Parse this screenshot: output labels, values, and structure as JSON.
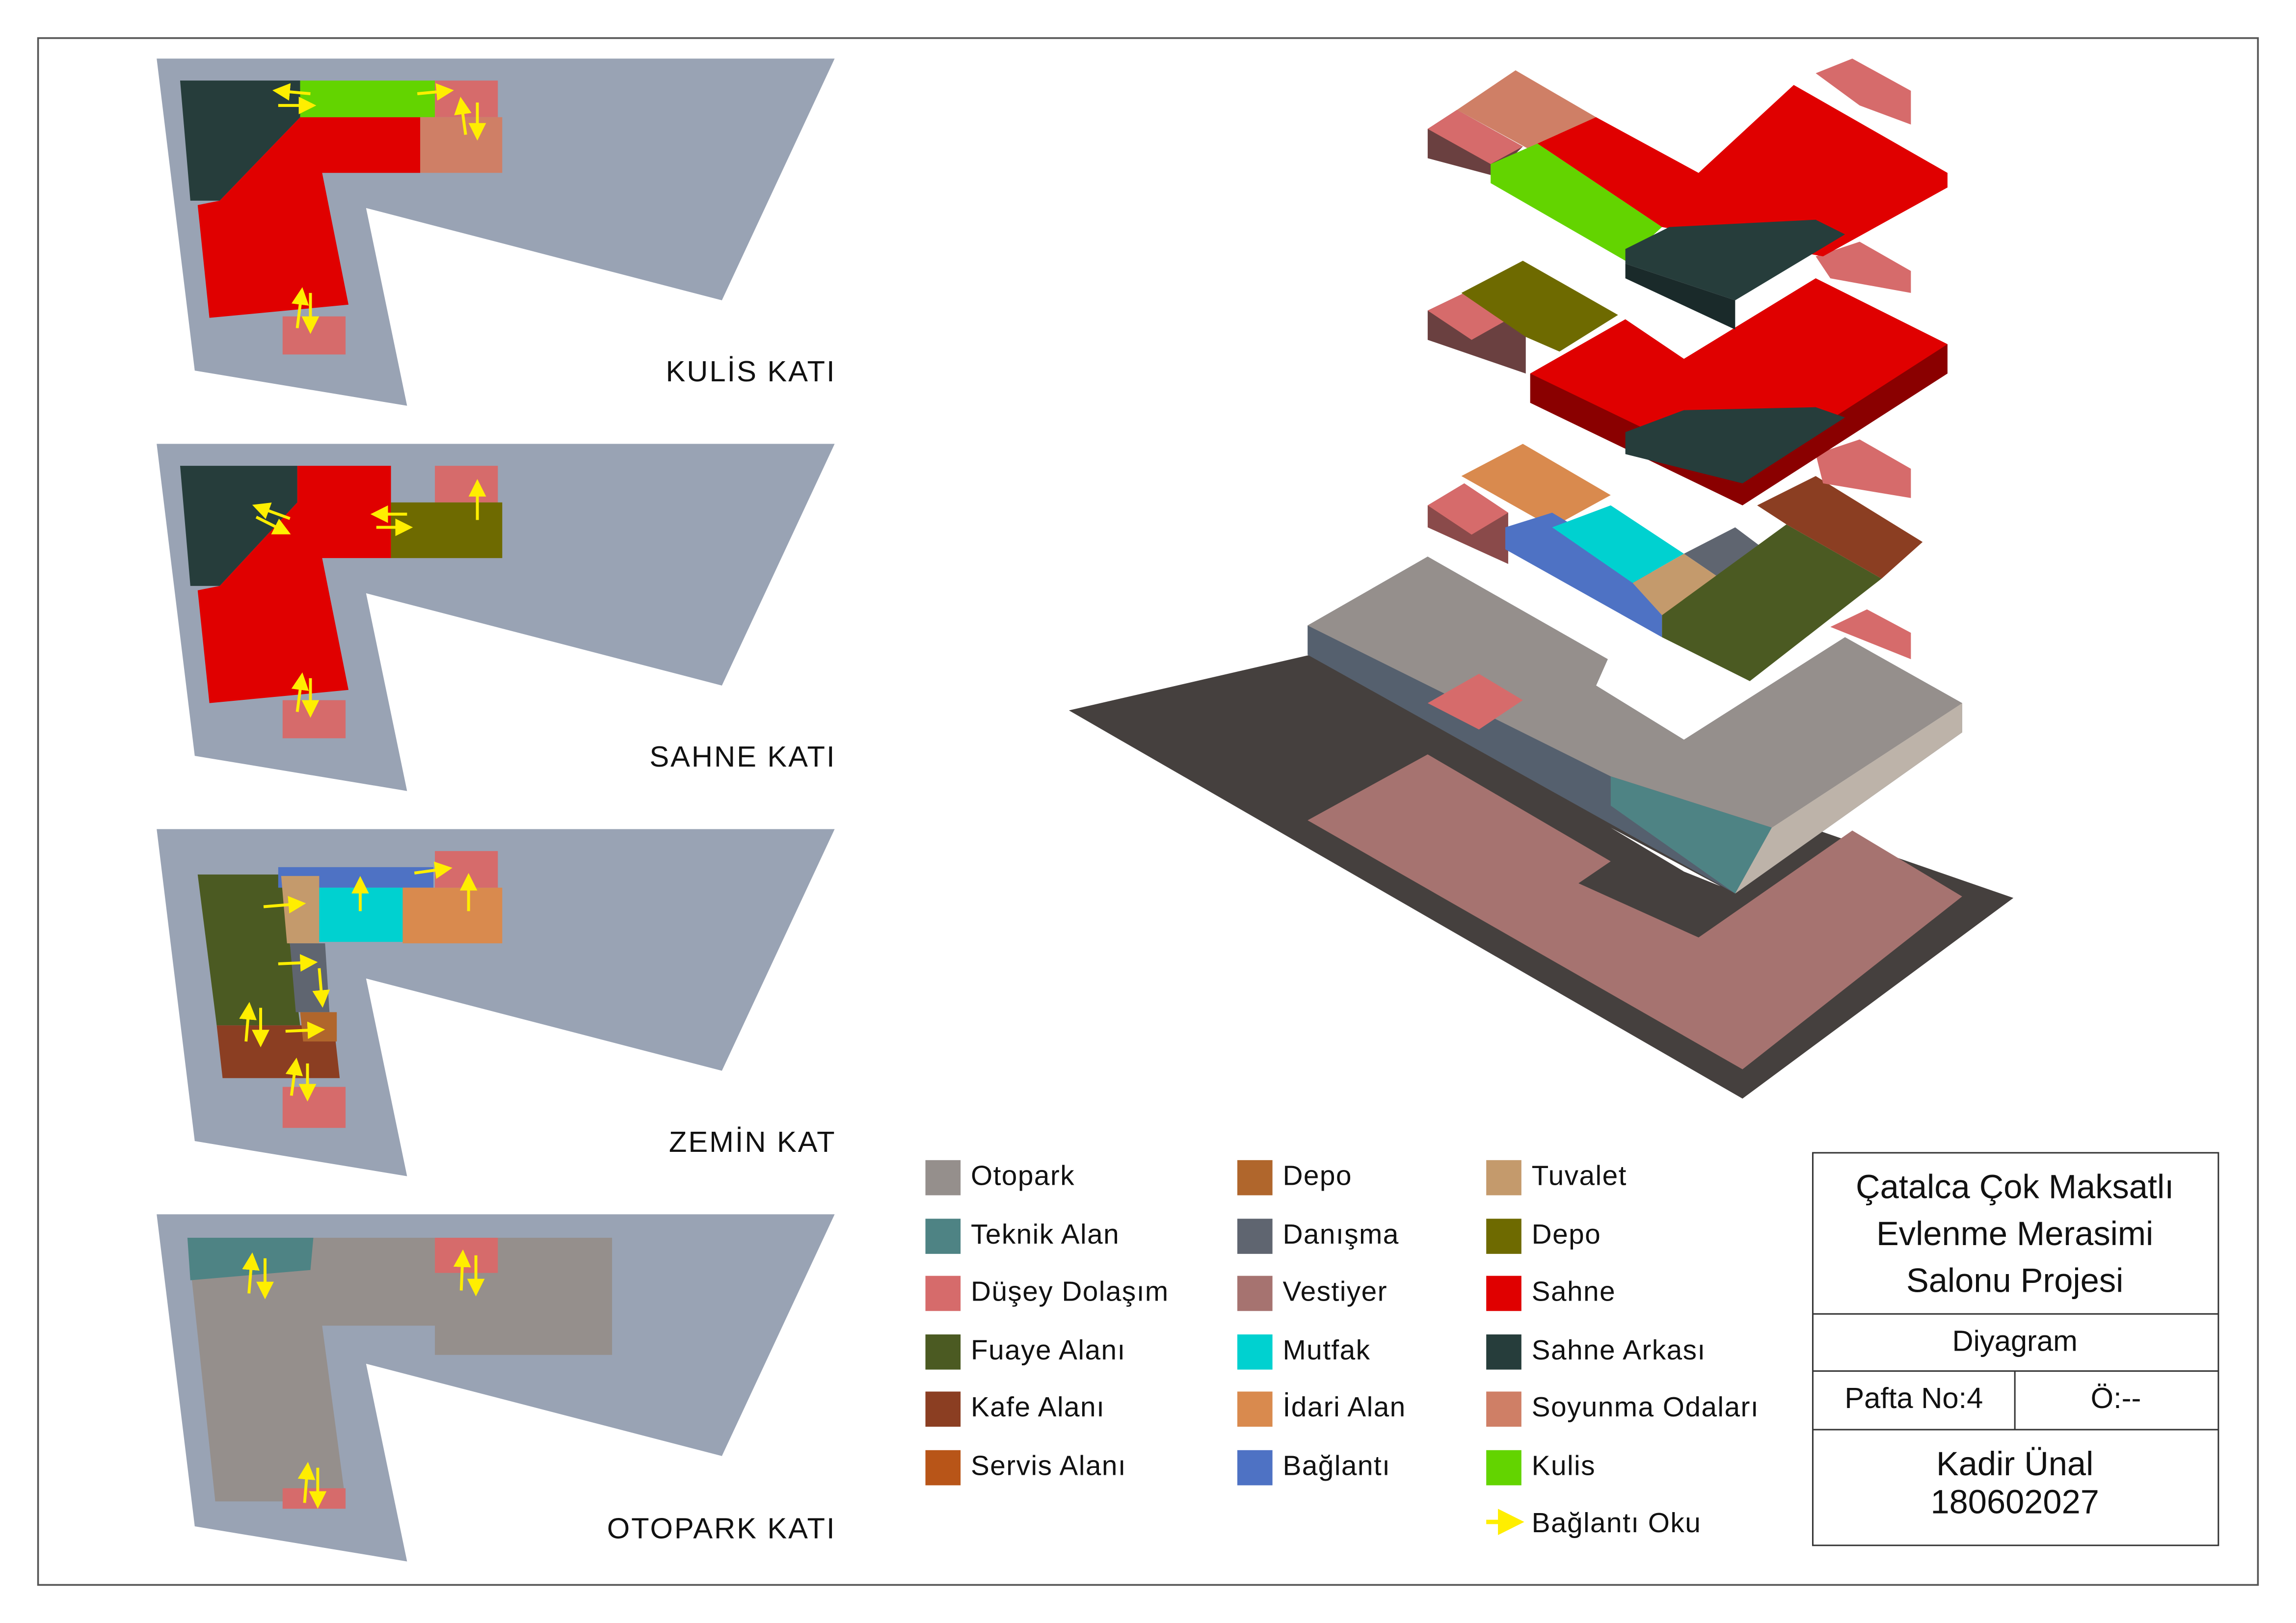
{
  "floors": [
    {
      "label": "KULİS KATI"
    },
    {
      "label": "SAHNE KATI"
    },
    {
      "label": "ZEMİN KAT"
    },
    {
      "label": "OTOPARK KATI"
    }
  ],
  "legend": [
    {
      "label": "Otopark",
      "color": "#958f8c"
    },
    {
      "label": "Teknik Alan",
      "color": "#4e8384"
    },
    {
      "label": "Düşey Dolaşım",
      "color": "#d66b6b"
    },
    {
      "label": "Fuaye Alanı",
      "color": "#4b5a22"
    },
    {
      "label": "Kafe Alanı",
      "color": "#8b3e22"
    },
    {
      "label": "Servis Alanı",
      "color": "#b85518"
    },
    {
      "label": "Depo",
      "color": "#b0662c"
    },
    {
      "label": "Danışma",
      "color": "#5f6570"
    },
    {
      "label": "Vestiyer",
      "color": "#a67370"
    },
    {
      "label": "Mutfak",
      "color": "#00d1d0"
    },
    {
      "label": "İdari Alan",
      "color": "#d98a4e"
    },
    {
      "label": "Bağlantı",
      "color": "#4e72c4"
    },
    {
      "label": "Tuvalet",
      "color": "#c49a6c"
    },
    {
      "label": "Depo",
      "color": "#6e6a00"
    },
    {
      "label": "Sahne",
      "color": "#e00000"
    },
    {
      "label": "Sahne Arkası",
      "color": "#263d3b"
    },
    {
      "label": "Soyunma Odaları",
      "color": "#cf7f66"
    },
    {
      "label": "Kulis",
      "color": "#63d400"
    }
  ],
  "legend_arrow": {
    "label": "Bağlantı Oku",
    "color": "#ffee00"
  },
  "title_block": {
    "project": [
      "Çatalca Çok Maksatlı",
      "Evlenme Merasimi",
      "Salonu Projesi"
    ],
    "drawing": "Diyagram",
    "sheet": "Pafta No:4",
    "scale": "Ö:--",
    "author": "Kadir Ünal",
    "student_no": "180602027"
  }
}
